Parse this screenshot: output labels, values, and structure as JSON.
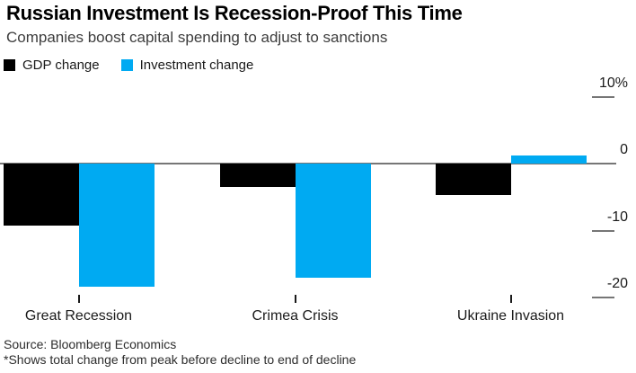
{
  "header": {
    "title": "Russian Investment Is Recession-Proof This Time",
    "subtitle": "Companies boost capital spending to adjust to sanctions"
  },
  "legend": [
    {
      "name": "gdp-change",
      "label": "GDP change",
      "color": "#000000"
    },
    {
      "name": "investment-change",
      "label": "Investment change",
      "color": "#00aaf2"
    }
  ],
  "chart_data": {
    "type": "bar",
    "categories": [
      "Great Recession",
      "Crimea Crisis",
      "Ukraine Invasion"
    ],
    "series": [
      {
        "name": "GDP change",
        "color": "#000000",
        "values": [
          -9.3,
          -3.5,
          -4.7
        ]
      },
      {
        "name": "Investment change",
        "color": "#00aaf2",
        "values": [
          -18.4,
          -17.0,
          1.2
        ]
      }
    ],
    "title": "Russian Investment Is Recession-Proof This Time",
    "subtitle": "Companies boost capital spending to adjust to sanctions",
    "xlabel": "",
    "ylabel": "",
    "unit": "%",
    "yticks": [
      10,
      0,
      -10,
      -20
    ],
    "ytick_labels": [
      "10%",
      "0",
      "-10",
      "-20"
    ],
    "ylim": [
      -22,
      12
    ],
    "grid": false,
    "legend_position": "top-left"
  },
  "colors": {
    "accent_blue": "#00aaf2",
    "bar_black": "#000000",
    "axis_gray": "#767676"
  },
  "footer": {
    "source": "Source: Bloomberg Economics",
    "footnote": "*Shows total change from peak before decline to end of decline"
  }
}
